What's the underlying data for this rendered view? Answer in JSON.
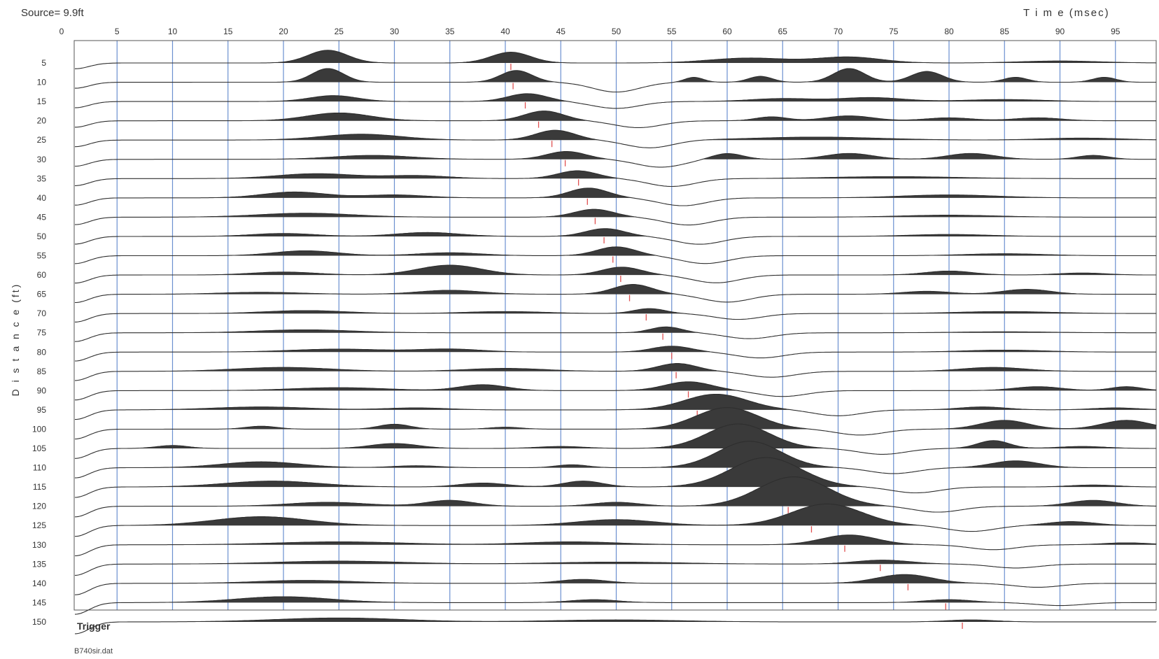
{
  "header": {
    "source_label": "Source= 9.9ft",
    "time_label": "T i m e (msec)"
  },
  "footer": {
    "file_name": "B740sir.dat",
    "trigger_label": "Trigger"
  },
  "colors": {
    "grid": "#6b8fd0",
    "trace": "#2e2e2e",
    "fill": "#3a3a3a",
    "pick": "#e05050",
    "frame": "#555555"
  },
  "chart_data": {
    "type": "seismic-wiggle",
    "title": "",
    "xlabel": "T i m e (msec)",
    "ylabel": "D i s t a n c e (ft)",
    "xlim": [
      0,
      98
    ],
    "ylim": [
      3,
      152
    ],
    "x_ticks": [
      0,
      5,
      10,
      15,
      20,
      25,
      30,
      35,
      40,
      45,
      50,
      55,
      60,
      65,
      70,
      75,
      80,
      85,
      90,
      95
    ],
    "y_ticks": [
      5,
      10,
      15,
      20,
      25,
      30,
      35,
      40,
      45,
      50,
      55,
      60,
      65,
      70,
      75,
      80,
      85,
      90,
      95,
      100,
      105,
      110,
      115,
      120,
      125,
      130,
      135,
      140,
      145,
      150
    ],
    "vertical_grid": true,
    "traces": [
      {
        "distance": 5,
        "pick_ms": 40.5,
        "lobes": [
          [
            24,
            2.5,
            1.3
          ],
          [
            40.5,
            2.5,
            1.1
          ],
          [
            62,
            5,
            0.5
          ],
          [
            71,
            4,
            0.6
          ],
          [
            90,
            5,
            0.2
          ]
        ]
      },
      {
        "distance": 10,
        "pick_ms": 40.7,
        "lobes": [
          [
            24,
            2,
            1.4
          ],
          [
            41,
            2,
            1.2
          ],
          [
            50,
            3,
            -1.0
          ],
          [
            57,
            1.2,
            0.5
          ],
          [
            63,
            1.5,
            0.6
          ],
          [
            71,
            2,
            1.4
          ],
          [
            78,
            2,
            1.1
          ],
          [
            86,
            1.5,
            0.5
          ],
          [
            94,
            1.5,
            0.5
          ]
        ]
      },
      {
        "distance": 15,
        "pick_ms": 41.8,
        "lobes": [
          [
            24.5,
            3,
            0.6
          ],
          [
            42,
            2.5,
            0.8
          ],
          [
            50,
            3,
            -0.7
          ],
          [
            65,
            4,
            0.3
          ],
          [
            73,
            4,
            0.4
          ],
          [
            85,
            5,
            0.2
          ]
        ]
      },
      {
        "distance": 20,
        "pick_ms": 43.0,
        "lobes": [
          [
            25,
            4,
            0.8
          ],
          [
            43.5,
            2.5,
            1.0
          ],
          [
            52,
            3,
            -0.7
          ],
          [
            64,
            2,
            0.4
          ],
          [
            71,
            3,
            0.5
          ],
          [
            80,
            3,
            0.3
          ],
          [
            88,
            3,
            0.3
          ]
        ]
      },
      {
        "distance": 25,
        "pick_ms": 44.2,
        "lobes": [
          [
            27,
            5,
            0.6
          ],
          [
            44.5,
            2.5,
            1.0
          ],
          [
            53,
            3,
            -0.8
          ],
          [
            68,
            8,
            0.3
          ],
          [
            92,
            5,
            0.2
          ]
        ]
      },
      {
        "distance": 30,
        "pick_ms": 45.4,
        "lobes": [
          [
            28,
            5,
            0.4
          ],
          [
            45.5,
            2.5,
            0.8
          ],
          [
            54,
            3,
            -0.8
          ],
          [
            60,
            2,
            0.6
          ],
          [
            71,
            3,
            0.6
          ],
          [
            82,
            3,
            0.6
          ],
          [
            93,
            2,
            0.4
          ]
        ]
      },
      {
        "distance": 35,
        "pick_ms": 46.6,
        "lobes": [
          [
            23,
            5,
            0.5
          ],
          [
            32,
            4,
            0.3
          ],
          [
            46.5,
            2.5,
            0.8
          ],
          [
            55,
            3,
            -0.8
          ],
          [
            75,
            8,
            0.2
          ]
        ]
      },
      {
        "distance": 40,
        "pick_ms": 47.4,
        "lobes": [
          [
            21,
            4,
            0.6
          ],
          [
            30,
            4,
            0.3
          ],
          [
            47.5,
            2.5,
            1.0
          ],
          [
            56,
            3,
            -0.8
          ],
          [
            80,
            6,
            0.3
          ]
        ]
      },
      {
        "distance": 45,
        "pick_ms": 48.1,
        "lobes": [
          [
            22,
            6,
            0.4
          ],
          [
            48,
            2.5,
            0.8
          ],
          [
            56.5,
            3,
            -0.8
          ],
          [
            80,
            6,
            0.2
          ]
        ]
      },
      {
        "distance": 50,
        "pick_ms": 48.9,
        "lobes": [
          [
            20,
            4,
            0.3
          ],
          [
            33,
            4,
            0.4
          ],
          [
            49,
            2.5,
            0.8
          ],
          [
            57.5,
            3,
            -0.8
          ],
          [
            80,
            5,
            0.2
          ]
        ]
      },
      {
        "distance": 55,
        "pick_ms": 49.7,
        "lobes": [
          [
            22,
            4,
            0.5
          ],
          [
            35,
            4,
            0.3
          ],
          [
            50,
            2.5,
            0.9
          ],
          [
            58,
            3,
            -0.8
          ],
          [
            85,
            5,
            0.2
          ]
        ]
      },
      {
        "distance": 60,
        "pick_ms": 50.4,
        "lobes": [
          [
            20,
            4,
            0.3
          ],
          [
            35,
            4,
            1.0
          ],
          [
            50.5,
            2.5,
            0.8
          ],
          [
            59,
            3,
            -0.8
          ],
          [
            80,
            3,
            0.4
          ],
          [
            92,
            3,
            0.2
          ]
        ]
      },
      {
        "distance": 65,
        "pick_ms": 51.2,
        "lobes": [
          [
            18,
            5,
            0.2
          ],
          [
            35,
            4,
            0.4
          ],
          [
            51.5,
            2.5,
            1.0
          ],
          [
            60,
            3,
            -0.8
          ],
          [
            78,
            3,
            0.3
          ],
          [
            87,
            3,
            0.5
          ]
        ]
      },
      {
        "distance": 70,
        "pick_ms": 52.7,
        "lobes": [
          [
            22,
            5,
            0.3
          ],
          [
            40,
            5,
            0.2
          ],
          [
            53,
            2,
            0.5
          ],
          [
            61,
            3,
            -0.6
          ],
          [
            85,
            6,
            0.2
          ]
        ]
      },
      {
        "distance": 75,
        "pick_ms": 54.2,
        "lobes": [
          [
            22,
            6,
            0.3
          ],
          [
            54.5,
            2,
            0.6
          ],
          [
            62,
            3,
            -0.6
          ],
          [
            85,
            6,
            0.1
          ]
        ]
      },
      {
        "distance": 80,
        "pick_ms": 55.0,
        "lobes": [
          [
            25,
            6,
            0.3
          ],
          [
            35,
            4,
            0.3
          ],
          [
            55,
            2.5,
            0.6
          ],
          [
            63,
            3,
            -0.6
          ],
          [
            85,
            5,
            0.2
          ]
        ]
      },
      {
        "distance": 85,
        "pick_ms": 55.4,
        "lobes": [
          [
            20,
            6,
            0.4
          ],
          [
            40,
            5,
            0.3
          ],
          [
            55.5,
            2.5,
            0.8
          ],
          [
            64,
            3,
            -0.6
          ],
          [
            84,
            4,
            0.4
          ]
        ]
      },
      {
        "distance": 90,
        "pick_ms": 56.5,
        "lobes": [
          [
            25,
            6,
            0.3
          ],
          [
            38,
            3,
            0.6
          ],
          [
            56.5,
            3,
            0.9
          ],
          [
            65,
            3,
            -0.6
          ],
          [
            88,
            3,
            0.4
          ],
          [
            96,
            2,
            0.4
          ]
        ]
      },
      {
        "distance": 95,
        "pick_ms": 57.3,
        "lobes": [
          [
            18,
            6,
            0.3
          ],
          [
            32,
            4,
            0.2
          ],
          [
            59,
            4,
            1.6
          ],
          [
            70,
            3,
            -0.6
          ],
          [
            83,
            3,
            0.3
          ],
          [
            95,
            3,
            0.2
          ]
        ]
      },
      {
        "distance": 100,
        "pick_ms": 59.5,
        "lobes": [
          [
            18,
            2,
            0.3
          ],
          [
            30,
            2,
            0.5
          ],
          [
            40,
            2,
            0.2
          ],
          [
            60,
            4,
            2.2
          ],
          [
            72,
            3,
            -0.6
          ],
          [
            85,
            3,
            0.9
          ],
          [
            96,
            3,
            0.9
          ]
        ]
      },
      {
        "distance": 105,
        "pick_ms": 60.6,
        "lobes": [
          [
            10,
            2,
            0.3
          ],
          [
            30,
            3,
            0.5
          ],
          [
            45,
            3,
            0.2
          ],
          [
            61,
            4,
            2.5
          ],
          [
            74,
            3,
            -0.6
          ],
          [
            84,
            2,
            0.8
          ],
          [
            92,
            3,
            0.2
          ]
        ]
      },
      {
        "distance": 110,
        "pick_ms": 62.0,
        "lobes": [
          [
            18,
            5,
            0.6
          ],
          [
            32,
            3,
            0.2
          ],
          [
            46,
            2,
            0.3
          ],
          [
            62,
            4,
            2.7
          ],
          [
            75,
            3,
            -0.6
          ],
          [
            86,
            3,
            0.7
          ]
        ]
      },
      {
        "distance": 115,
        "pick_ms": 63.5,
        "lobes": [
          [
            19,
            6,
            0.6
          ],
          [
            38,
            3,
            0.4
          ],
          [
            47,
            2.5,
            0.6
          ],
          [
            63.5,
            4.5,
            3.0
          ],
          [
            77,
            3,
            -0.6
          ],
          [
            93,
            3,
            0.2
          ]
        ]
      },
      {
        "distance": 120,
        "pick_ms": 65.5,
        "lobes": [
          [
            24,
            5,
            0.4
          ],
          [
            35,
            3,
            0.6
          ],
          [
            50,
            3,
            0.4
          ],
          [
            66,
            4.5,
            3.0
          ],
          [
            79,
            3,
            -0.6
          ],
          [
            93,
            3,
            0.6
          ]
        ]
      },
      {
        "distance": 125,
        "pick_ms": 67.6,
        "lobes": [
          [
            18,
            6,
            0.9
          ],
          [
            50,
            5,
            0.6
          ],
          [
            69,
            4.5,
            2.2
          ],
          [
            82,
            3,
            -0.6
          ],
          [
            91,
            3,
            0.4
          ]
        ]
      },
      {
        "distance": 130,
        "pick_ms": 70.6,
        "lobes": [
          [
            25,
            8,
            0.3
          ],
          [
            46,
            6,
            0.3
          ],
          [
            71,
            3.5,
            1.0
          ],
          [
            84,
            3,
            -0.5
          ],
          [
            96,
            3,
            0.2
          ]
        ]
      },
      {
        "distance": 135,
        "pick_ms": 73.8,
        "lobes": [
          [
            25,
            8,
            0.3
          ],
          [
            50,
            8,
            0.2
          ],
          [
            74,
            3.5,
            0.4
          ],
          [
            86,
            3,
            -0.4
          ]
        ]
      },
      {
        "distance": 140,
        "pick_ms": 76.3,
        "lobes": [
          [
            22,
            6,
            0.3
          ],
          [
            47,
            3,
            0.4
          ],
          [
            76,
            3.5,
            0.9
          ],
          [
            88,
            3,
            -0.4
          ]
        ]
      },
      {
        "distance": 145,
        "pick_ms": 79.7,
        "lobes": [
          [
            20,
            6,
            0.6
          ],
          [
            48,
            3,
            0.3
          ],
          [
            80,
            3,
            0.3
          ],
          [
            90,
            3,
            -0.3
          ]
        ]
      },
      {
        "distance": 150,
        "pick_ms": 81.2,
        "lobes": [
          [
            25,
            8,
            0.4
          ],
          [
            50,
            8,
            0.2
          ],
          [
            82,
            3,
            0.2
          ]
        ]
      }
    ]
  }
}
